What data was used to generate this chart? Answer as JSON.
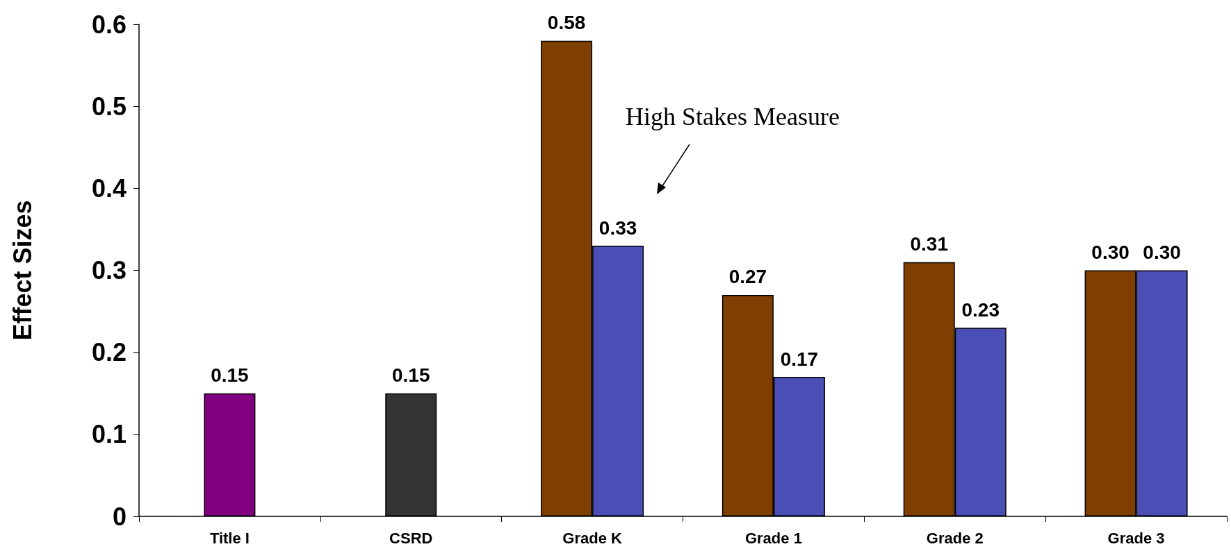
{
  "chart_data": {
    "type": "bar",
    "ylabel": "Effect Sizes",
    "categories": [
      "Title I",
      "CSRD",
      "Grade K",
      "Grade 1",
      "Grade 2",
      "Grade 3"
    ],
    "series": [
      {
        "colors": [
          "#800080",
          "#333333",
          null,
          null,
          null,
          null
        ],
        "values": [
          0.15,
          0.15,
          null,
          null,
          null,
          null
        ],
        "value_labels": [
          "0.15",
          "0.15",
          null,
          null,
          null,
          null
        ]
      },
      {
        "color": "#7f3f00",
        "values": [
          null,
          null,
          0.58,
          0.27,
          0.31,
          0.3
        ],
        "value_labels": [
          null,
          null,
          "0.58",
          "0.27",
          "0.31",
          "0.30"
        ]
      },
      {
        "color": "#4b4fb5",
        "values": [
          null,
          null,
          0.33,
          0.17,
          0.23,
          0.3
        ],
        "value_labels": [
          null,
          null,
          "0.33",
          "0.17",
          "0.23",
          "0.30"
        ]
      }
    ],
    "ylim": [
      0,
      0.6
    ],
    "yticks": [
      0,
      0.1,
      0.2,
      0.3,
      0.4,
      0.5,
      0.6
    ],
    "grid": false,
    "annotations": [
      "High Stakes Measure"
    ]
  }
}
